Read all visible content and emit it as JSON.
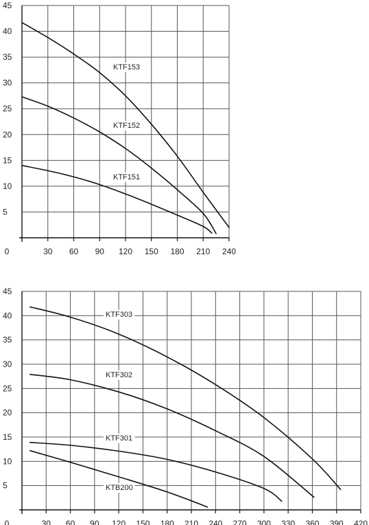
{
  "chart_data": [
    {
      "type": "line",
      "xlim": [
        0,
        240
      ],
      "ylim": [
        0,
        45
      ],
      "grid": true,
      "x_ticks": [
        "0",
        "30",
        "60",
        "90",
        "120",
        "150",
        "180",
        "210",
        "240"
      ],
      "y_ticks": [
        "5",
        "10",
        "15",
        "20",
        "25",
        "30",
        "35",
        "40",
        "45"
      ],
      "series": [
        {
          "name": "KTF153",
          "points": [
            [
              0,
              41.7
            ],
            [
              30,
              38.8
            ],
            [
              60,
              35.6
            ],
            [
              90,
              32
            ],
            [
              120,
              27.5
            ],
            [
              150,
              22
            ],
            [
              180,
              15.8
            ],
            [
              210,
              8.8
            ],
            [
              240,
              2
            ]
          ]
        },
        {
          "name": "KTF152",
          "points": [
            [
              0,
              27.3
            ],
            [
              30,
              25.5
            ],
            [
              60,
              23.2
            ],
            [
              90,
              20.5
            ],
            [
              120,
              17.3
            ],
            [
              150,
              13.5
            ],
            [
              180,
              9.3
            ],
            [
              210,
              4.7
            ],
            [
              225,
              0.8
            ]
          ]
        },
        {
          "name": "KTF151",
          "points": [
            [
              0,
              14
            ],
            [
              30,
              13
            ],
            [
              60,
              11.8
            ],
            [
              90,
              10.3
            ],
            [
              120,
              8.5
            ],
            [
              150,
              6.5
            ],
            [
              180,
              4.4
            ],
            [
              210,
              2.2
            ],
            [
              220,
              0.9
            ]
          ]
        }
      ]
    },
    {
      "type": "line",
      "xlim": [
        0,
        420
      ],
      "ylim": [
        0,
        45
      ],
      "grid": true,
      "x_ticks": [
        "0",
        "30",
        "60",
        "90",
        "120",
        "150",
        "180",
        "210",
        "240",
        "270",
        "300",
        "330",
        "360",
        "390",
        "420"
      ],
      "y_ticks": [
        "5",
        "10",
        "15",
        "20",
        "25",
        "30",
        "35",
        "40",
        "45"
      ],
      "series": [
        {
          "name": "KTF303",
          "points": [
            [
              10,
              41.8
            ],
            [
              60,
              39.7
            ],
            [
              120,
              36.2
            ],
            [
              180,
              31.5
            ],
            [
              240,
              25.8
            ],
            [
              300,
              19
            ],
            [
              360,
              10.5
            ],
            [
              395,
              4.2
            ]
          ]
        },
        {
          "name": "KTF302",
          "points": [
            [
              10,
              27.9
            ],
            [
              60,
              26.8
            ],
            [
              120,
              24.3
            ],
            [
              180,
              20.8
            ],
            [
              240,
              16.3
            ],
            [
              300,
              11
            ],
            [
              362,
              2.6
            ]
          ]
        },
        {
          "name": "KTF301",
          "points": [
            [
              10,
              13.9
            ],
            [
              60,
              13.3
            ],
            [
              120,
              12.1
            ],
            [
              180,
              10.4
            ],
            [
              240,
              7.8
            ],
            [
              300,
              4.4
            ],
            [
              322,
              1.8
            ]
          ]
        },
        {
          "name": "KTB200",
          "points": [
            [
              10,
              12.2
            ],
            [
              60,
              9.8
            ],
            [
              120,
              6.8
            ],
            [
              180,
              3.7
            ],
            [
              230,
              0.6
            ]
          ]
        }
      ]
    }
  ]
}
